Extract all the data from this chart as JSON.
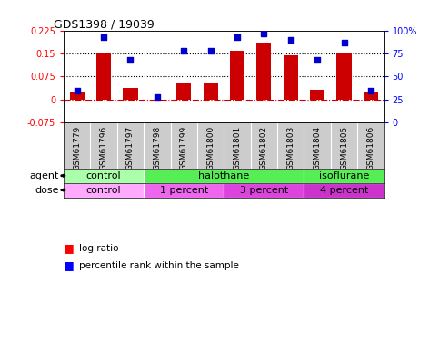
{
  "title": "GDS1398 / 19039",
  "samples": [
    "GSM61779",
    "GSM61796",
    "GSM61797",
    "GSM61798",
    "GSM61799",
    "GSM61800",
    "GSM61801",
    "GSM61802",
    "GSM61803",
    "GSM61804",
    "GSM61805",
    "GSM61806"
  ],
  "log_ratio": [
    0.025,
    0.153,
    0.038,
    -0.005,
    0.055,
    0.055,
    0.16,
    0.185,
    0.143,
    0.032,
    0.152,
    0.022
  ],
  "percentile": [
    35,
    93,
    68,
    28,
    78,
    78,
    93,
    97,
    90,
    68,
    87,
    35
  ],
  "ylim_left": [
    -0.075,
    0.225
  ],
  "ylim_right": [
    0,
    100
  ],
  "yticks_left": [
    -0.075,
    0,
    0.075,
    0.15,
    0.225
  ],
  "ytick_labels_left": [
    "-0.075",
    "0",
    "0.075",
    "0.15",
    "0.225"
  ],
  "yticks_right": [
    0,
    25,
    50,
    75,
    100
  ],
  "ytick_labels_right": [
    "0",
    "25",
    "50",
    "75",
    "100%"
  ],
  "hlines": [
    0.075,
    0.15
  ],
  "agent_groups": [
    {
      "label": "control",
      "start": 0,
      "end": 3,
      "color": "#aaffaa"
    },
    {
      "label": "halothane",
      "start": 3,
      "end": 9,
      "color": "#55ee55"
    },
    {
      "label": "isoflurane",
      "start": 9,
      "end": 12,
      "color": "#55ee55"
    }
  ],
  "dose_groups": [
    {
      "label": "control",
      "start": 0,
      "end": 3,
      "color": "#ffaaff"
    },
    {
      "label": "1 percent",
      "start": 3,
      "end": 6,
      "color": "#ee66ee"
    },
    {
      "label": "3 percent",
      "start": 6,
      "end": 9,
      "color": "#dd44dd"
    },
    {
      "label": "4 percent",
      "start": 9,
      "end": 12,
      "color": "#cc33cc"
    }
  ],
  "bar_color": "#cc0000",
  "dot_color": "#0000cc",
  "zero_line_color": "#cc0000",
  "bg_color": "#ffffff",
  "label_bg_color": "#cccccc"
}
